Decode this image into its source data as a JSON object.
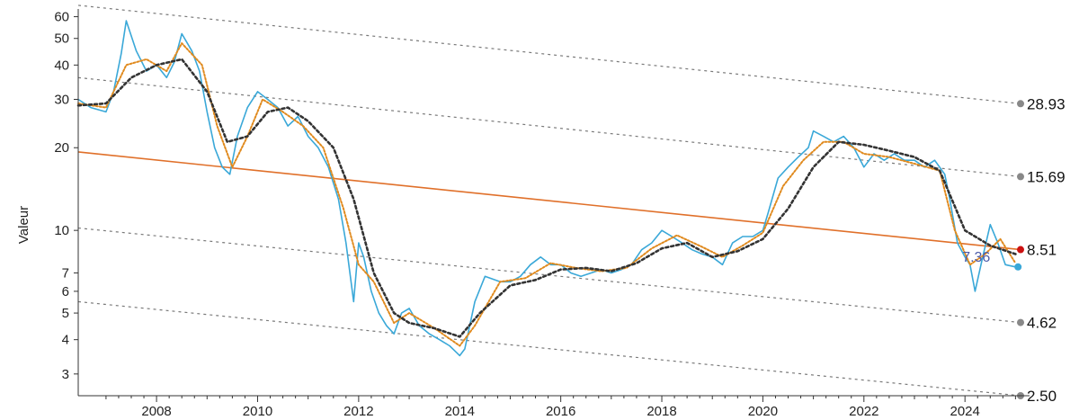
{
  "chart_data": {
    "type": "line",
    "ylabel": "Valeur",
    "y_scale": "log",
    "ylim": [
      2.5,
      64
    ],
    "xlim": [
      2006.45,
      2025.1
    ],
    "y_ticks": [
      3,
      4,
      5,
      6,
      7,
      10,
      20,
      30,
      40,
      50,
      60
    ],
    "x_ticks": [
      2008,
      2010,
      2012,
      2014,
      2016,
      2018,
      2020,
      2022,
      2024
    ],
    "grid": false,
    "series": [
      {
        "role": "price",
        "color": "#3aa8d8",
        "x": [
          2006.45,
          2006.7,
          2007.0,
          2007.15,
          2007.3,
          2007.4,
          2007.6,
          2007.8,
          2008.0,
          2008.2,
          2008.35,
          2008.5,
          2008.7,
          2008.85,
          2009.0,
          2009.15,
          2009.3,
          2009.45,
          2009.6,
          2009.8,
          2010.0,
          2010.2,
          2010.4,
          2010.6,
          2010.8,
          2011.0,
          2011.2,
          2011.4,
          2011.6,
          2011.75,
          2011.9,
          2012.0,
          2012.1,
          2012.25,
          2012.4,
          2012.55,
          2012.7,
          2012.85,
          2013.0,
          2013.2,
          2013.4,
          2013.6,
          2013.8,
          2014.0,
          2014.1,
          2014.3,
          2014.5,
          2014.8,
          2015.0,
          2015.2,
          2015.4,
          2015.6,
          2015.8,
          2016.0,
          2016.2,
          2016.4,
          2016.6,
          2016.8,
          2017.0,
          2017.2,
          2017.4,
          2017.6,
          2017.8,
          2018.0,
          2018.2,
          2018.4,
          2018.6,
          2018.8,
          2019.0,
          2019.2,
          2019.4,
          2019.6,
          2019.8,
          2020.0,
          2020.1,
          2020.3,
          2020.5,
          2020.7,
          2020.9,
          2021.0,
          2021.2,
          2021.4,
          2021.6,
          2021.8,
          2022.0,
          2022.2,
          2022.4,
          2022.6,
          2022.8,
          2023.0,
          2023.2,
          2023.4,
          2023.6,
          2023.7,
          2023.85,
          2024.0,
          2024.1,
          2024.2,
          2024.35,
          2024.5,
          2024.65,
          2024.8,
          2025.0
        ],
        "y": [
          30,
          28,
          27,
          32,
          44,
          58,
          45,
          38,
          40,
          36,
          41,
          52,
          45,
          38,
          27,
          20,
          17,
          16,
          22,
          28,
          32,
          30,
          28,
          24,
          26,
          22,
          20,
          17,
          13,
          9,
          5.5,
          9,
          8,
          6,
          5,
          4.5,
          4.2,
          5,
          5.2,
          4.5,
          4.2,
          4.0,
          3.8,
          3.5,
          3.7,
          5.5,
          6.8,
          6.5,
          6.5,
          6.8,
          7.5,
          8.0,
          7.5,
          7.5,
          7.0,
          6.8,
          7.0,
          7.2,
          7.0,
          7.2,
          7.5,
          8.5,
          9.0,
          10,
          9.5,
          9.0,
          8.5,
          8.2,
          8.0,
          7.5,
          9.0,
          9.5,
          9.5,
          10,
          11.5,
          15.5,
          17,
          18.5,
          20,
          23,
          22,
          21,
          22,
          20,
          17,
          19,
          18,
          19,
          18,
          18,
          17,
          18,
          16,
          13,
          9,
          8,
          7.5,
          6,
          8,
          10.5,
          9.0,
          7.5,
          7.36
        ]
      },
      {
        "role": "short moving average",
        "color": "#e08a1e",
        "x": [
          2006.45,
          2007.0,
          2007.4,
          2007.8,
          2008.2,
          2008.5,
          2008.9,
          2009.2,
          2009.5,
          2009.8,
          2010.1,
          2010.5,
          2010.9,
          2011.3,
          2011.7,
          2012.0,
          2012.3,
          2012.7,
          2013.0,
          2013.5,
          2014.0,
          2014.3,
          2014.8,
          2015.3,
          2015.8,
          2016.3,
          2016.8,
          2017.3,
          2017.8,
          2018.3,
          2018.8,
          2019.2,
          2019.6,
          2020.0,
          2020.4,
          2020.8,
          2021.2,
          2021.6,
          2022.0,
          2022.5,
          2023.0,
          2023.5,
          2023.8,
          2024.1,
          2024.4,
          2024.7,
          2025.0
        ],
        "y": [
          29,
          28,
          40,
          42,
          38,
          48,
          40,
          24,
          17,
          22,
          30,
          27,
          24,
          20,
          12,
          7.5,
          6.5,
          4.6,
          5.0,
          4.4,
          3.8,
          4.5,
          6.5,
          6.7,
          7.6,
          7.3,
          7.1,
          7.3,
          8.6,
          9.6,
          8.7,
          8.0,
          8.8,
          9.8,
          14.5,
          18,
          21,
          21,
          19,
          18.5,
          17.5,
          16.5,
          10,
          7.5,
          8.2,
          9.3,
          7.6
        ]
      },
      {
        "role": "long moving average",
        "color": "#333333",
        "x": [
          2006.45,
          2007.0,
          2007.5,
          2008.0,
          2008.5,
          2009.0,
          2009.4,
          2009.8,
          2010.2,
          2010.6,
          2011.0,
          2011.5,
          2011.9,
          2012.3,
          2012.7,
          2013.0,
          2013.5,
          2014.0,
          2014.4,
          2015.0,
          2015.5,
          2016.0,
          2016.5,
          2017.0,
          2017.5,
          2018.0,
          2018.5,
          2019.0,
          2019.5,
          2020.0,
          2020.5,
          2021.0,
          2021.5,
          2022.0,
          2022.5,
          2023.0,
          2023.5,
          2024.0,
          2024.5,
          2025.0
        ],
        "y": [
          28.5,
          29,
          36,
          40,
          42,
          32,
          21,
          22,
          27,
          28,
          25,
          20,
          13,
          7,
          5,
          4.6,
          4.4,
          4.1,
          5.0,
          6.3,
          6.6,
          7.2,
          7.3,
          7.1,
          7.6,
          8.6,
          9.0,
          8.0,
          8.4,
          9.3,
          12,
          17,
          21,
          20.5,
          19.5,
          18.5,
          16.5,
          10,
          8.8,
          8.2
        ]
      }
    ],
    "trend_channel": {
      "x_start": 2006.45,
      "x_end": 2025.1,
      "center_color": "#e0702a",
      "lines": [
        {
          "role": "upper +2",
          "start": 66,
          "end": 28.93,
          "label": "28.93",
          "marker_color": "#888888"
        },
        {
          "role": "upper +1",
          "start": 36,
          "end": 15.69,
          "label": "15.69",
          "marker_color": "#888888"
        },
        {
          "role": "center",
          "start": 19.3,
          "end": 8.51,
          "label": "8.51",
          "marker_color": "#cc1111"
        },
        {
          "role": "lower -1",
          "start": 10.2,
          "end": 4.62,
          "label": "4.62",
          "marker_color": "#888888"
        },
        {
          "role": "lower -2",
          "start": 5.5,
          "end": 2.5,
          "label": "2.50",
          "marker_color": "#888888"
        }
      ]
    },
    "last_value": {
      "x": 2025.05,
      "y": 7.36,
      "label": "7.36",
      "color": "#4a5aa8",
      "marker_color": "#3aa8d8"
    }
  }
}
